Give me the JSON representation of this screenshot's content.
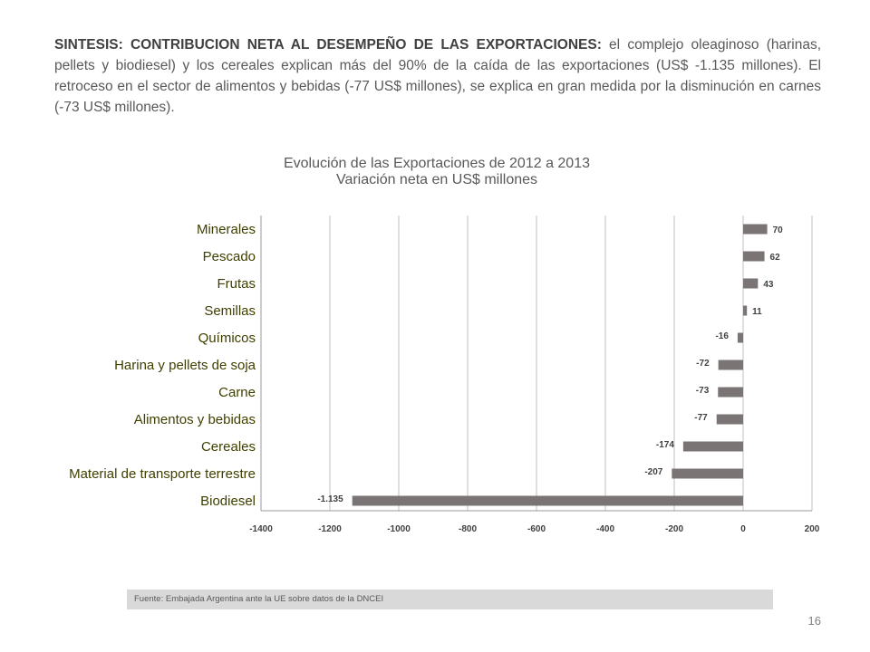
{
  "slide": {
    "intro_bold": "SINTESIS: CONTRIBUCION NETA AL DESEMPEÑO DE LAS EXPORTACIONES:",
    "intro_text": " el complejo oleaginoso  (harinas, pellets y biodiesel) y los cereales explican más del 90% de la caída de las exportaciones (US$ -1.135 millones). El retroceso en el sector de alimentos y bebidas (-77 US$ millones), se explica en gran medida por la disminución en carnes (-73 US$ millones).",
    "source": "Fuente: Embajada  Argentina ante la UE sobre datos de la DNCEI",
    "page_number": "16"
  },
  "chart_data": {
    "type": "bar",
    "orientation": "horizontal",
    "title": "Evolución de las Exportaciones de 2012 a 2013",
    "subtitle": "Variación neta en US$ millones",
    "categories": [
      "Minerales",
      "Pescado",
      "Frutas",
      "Semillas",
      "Químicos",
      "Harina y pellets de soja",
      "Carne",
      "Alimentos y bebidas",
      "Cereales",
      "Material de transporte terrestre",
      "Biodiesel"
    ],
    "values": [
      70,
      62,
      43,
      11,
      -16,
      -72,
      -73,
      -77,
      -174,
      -207,
      -1135
    ],
    "data_labels": [
      "70",
      "62",
      "43",
      "11",
      "-16",
      "-72",
      "-73",
      "-77",
      "-174",
      "-207",
      "-1.135"
    ],
    "xlim": [
      -1400,
      200
    ],
    "ticks": [
      -1400,
      -1200,
      -1000,
      -800,
      -600,
      -400,
      -200,
      0,
      200
    ],
    "grid": true,
    "bar_color": "#7a7474",
    "category_label_color": "#3f3f00"
  }
}
